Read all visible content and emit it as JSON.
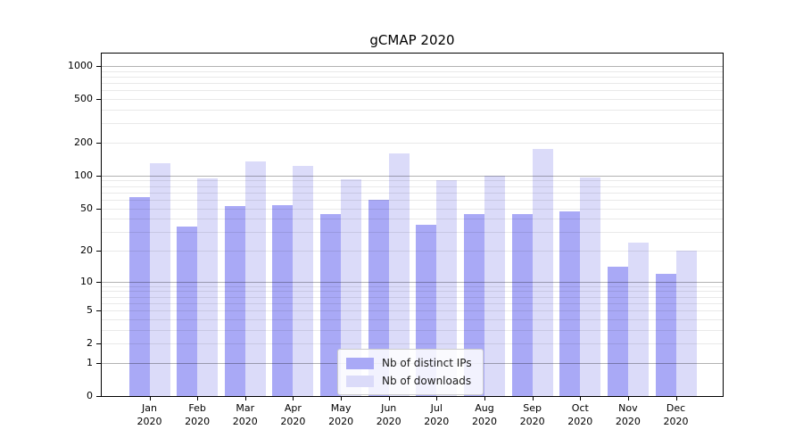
{
  "chart_data": {
    "type": "bar",
    "title": "gCMAP 2020",
    "year_label": "2020",
    "categories": [
      "Jan",
      "Feb",
      "Mar",
      "Apr",
      "May",
      "Jun",
      "Jul",
      "Aug",
      "Sep",
      "Oct",
      "Nov",
      "Dec"
    ],
    "series": [
      {
        "name": "Nb of distinct IPs",
        "color": "#a9a9f6",
        "values": [
          64,
          34,
          52,
          53,
          44,
          60,
          35,
          44,
          44,
          47,
          14,
          12
        ]
      },
      {
        "name": "Nb of downloads",
        "color": "#dbdbf9",
        "values": [
          129,
          95,
          136,
          122,
          92,
          161,
          90,
          100,
          177,
          97,
          24,
          20
        ]
      }
    ],
    "y_axis": {
      "scale": "log10(1+x)",
      "ymax": 1300,
      "tick_values": [
        0,
        1,
        2,
        5,
        10,
        20,
        50,
        100,
        200,
        500,
        1000
      ],
      "major_gridlines": [
        1,
        10,
        100,
        1000
      ],
      "minor_gridlines": [
        2,
        3,
        4,
        5,
        6,
        7,
        8,
        9,
        20,
        30,
        40,
        50,
        60,
        70,
        80,
        90,
        200,
        300,
        400,
        500,
        600,
        700,
        800,
        900
      ]
    },
    "legend": {
      "position": "lower center"
    },
    "grid": true
  }
}
